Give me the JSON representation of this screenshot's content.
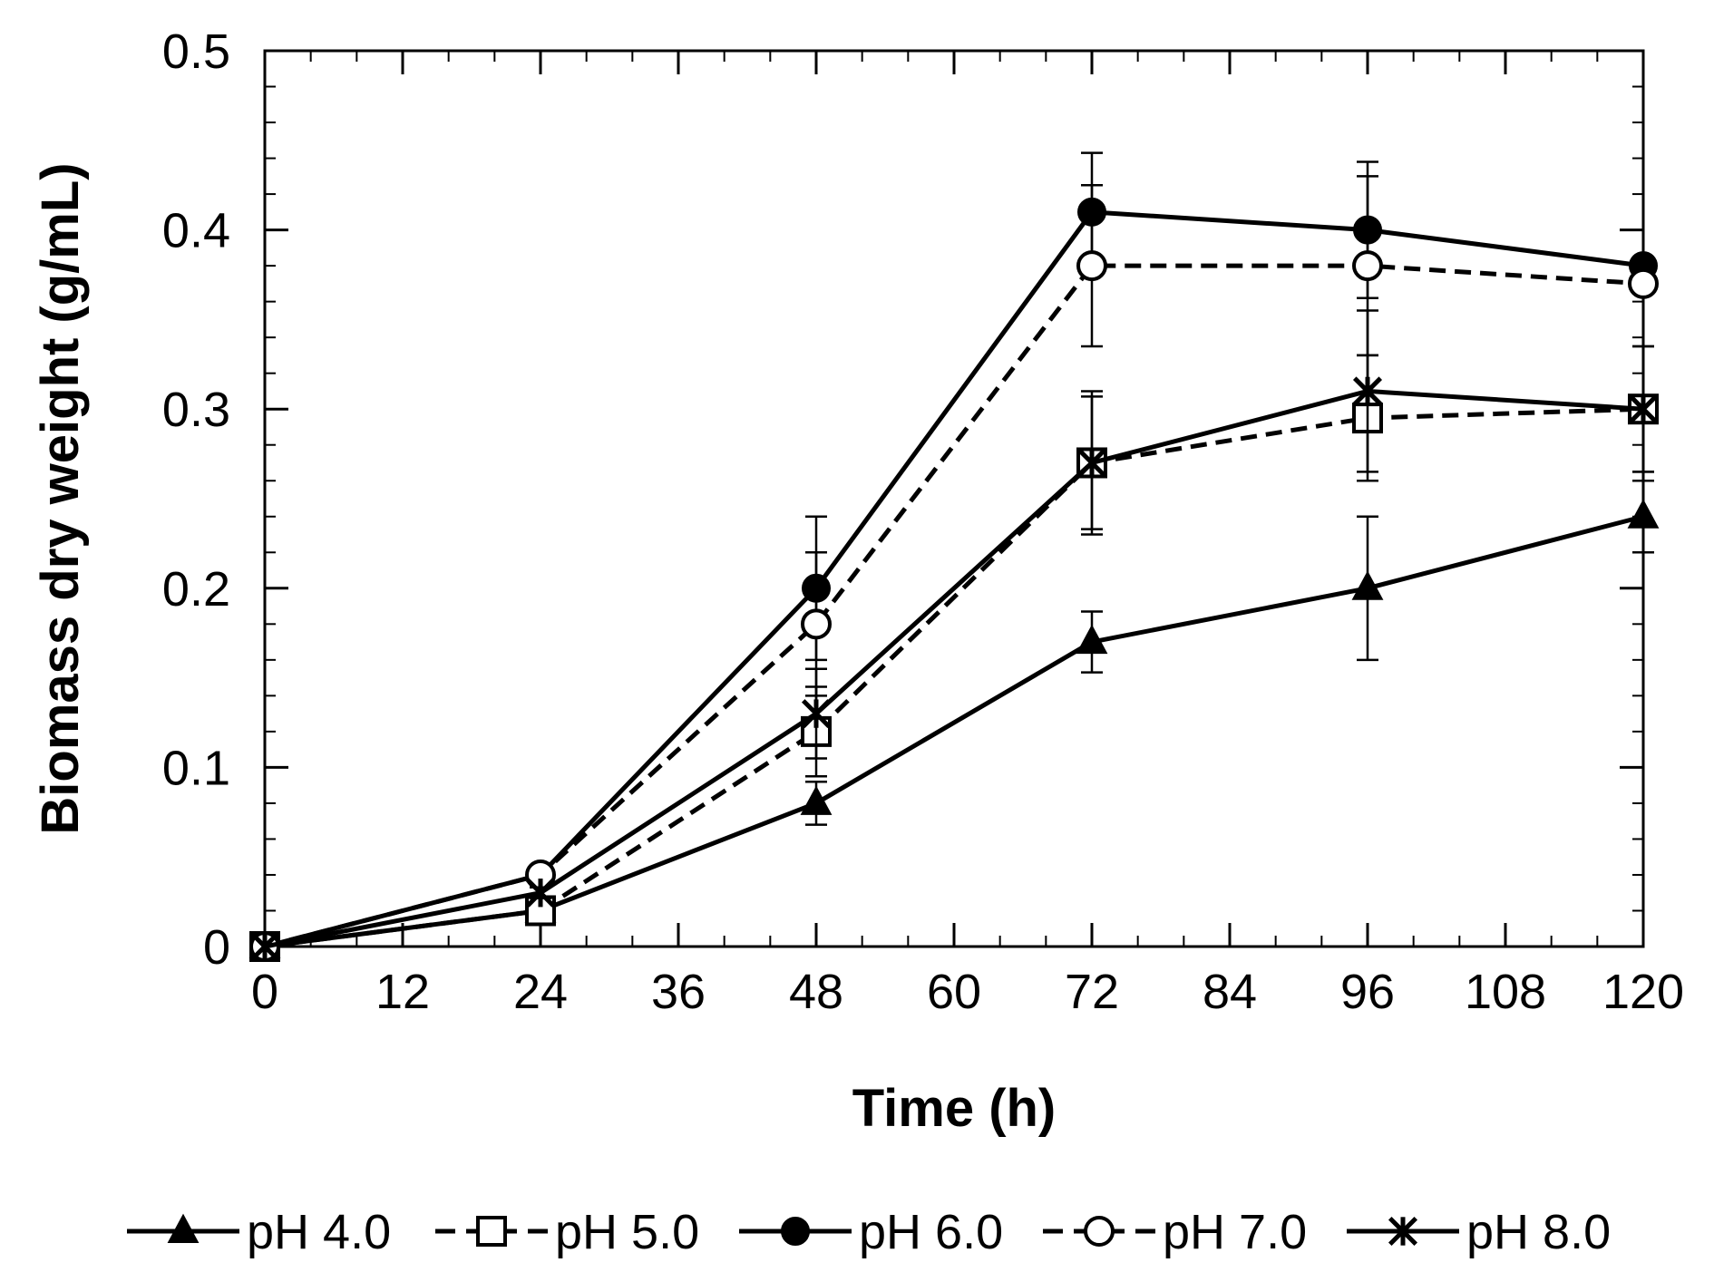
{
  "chart_data": {
    "type": "line",
    "xlabel": "Time (h)",
    "ylabel": "Biomass dry weight (g/mL)",
    "xlim": [
      0,
      120
    ],
    "ylim": [
      0,
      0.5
    ],
    "x_ticks": [
      0,
      12,
      24,
      36,
      48,
      60,
      72,
      84,
      96,
      108,
      120
    ],
    "x_tick_labels": [
      "0",
      "12",
      "24",
      "36",
      "48",
      "60",
      "72",
      "84",
      "96",
      "108",
      "120"
    ],
    "y_ticks": [
      0,
      0.1,
      0.2,
      0.3,
      0.4,
      0.5
    ],
    "y_tick_labels": [
      "0",
      "0.1",
      "0.2",
      "0.3",
      "0.4",
      "0.5"
    ],
    "x_minor_step": 4,
    "y_minor_step": 0.02,
    "grid": false,
    "legend_position": "bottom",
    "x": [
      0,
      24,
      48,
      72,
      96,
      120
    ],
    "series": [
      {
        "name": "pH 4.0",
        "marker": "triangle-filled",
        "line": "solid",
        "values": [
          0,
          0.02,
          0.08,
          0.17,
          0.2,
          0.24
        ],
        "errors": [
          0,
          0.003,
          0.012,
          0.017,
          0.04,
          0.02
        ]
      },
      {
        "name": "pH 5.0",
        "marker": "square-open",
        "line": "dashed",
        "values": [
          0,
          0.02,
          0.12,
          0.27,
          0.295,
          0.3
        ],
        "errors": [
          0,
          0.003,
          0.025,
          0.037,
          0.035,
          0.035
        ]
      },
      {
        "name": "pH 6.0",
        "marker": "circle-filled",
        "line": "solid",
        "values": [
          0,
          0.04,
          0.2,
          0.41,
          0.4,
          0.38
        ],
        "errors": [
          0,
          0.003,
          0.04,
          0.033,
          0.038,
          0.004
        ]
      },
      {
        "name": "pH 7.0",
        "marker": "circle-open",
        "line": "dashed",
        "values": [
          0,
          0.04,
          0.18,
          0.38,
          0.38,
          0.37
        ],
        "errors": [
          0,
          0.003,
          0.04,
          0.045,
          0.05,
          0.004
        ]
      },
      {
        "name": "pH 8.0",
        "marker": "asterisk",
        "line": "solid",
        "values": [
          0,
          0.03,
          0.13,
          0.27,
          0.31,
          0.3
        ],
        "errors": [
          0,
          0.003,
          0.025,
          0.04,
          0.045,
          0.035
        ]
      }
    ]
  },
  "colors": {
    "ink": "#000000",
    "background": "#ffffff"
  }
}
